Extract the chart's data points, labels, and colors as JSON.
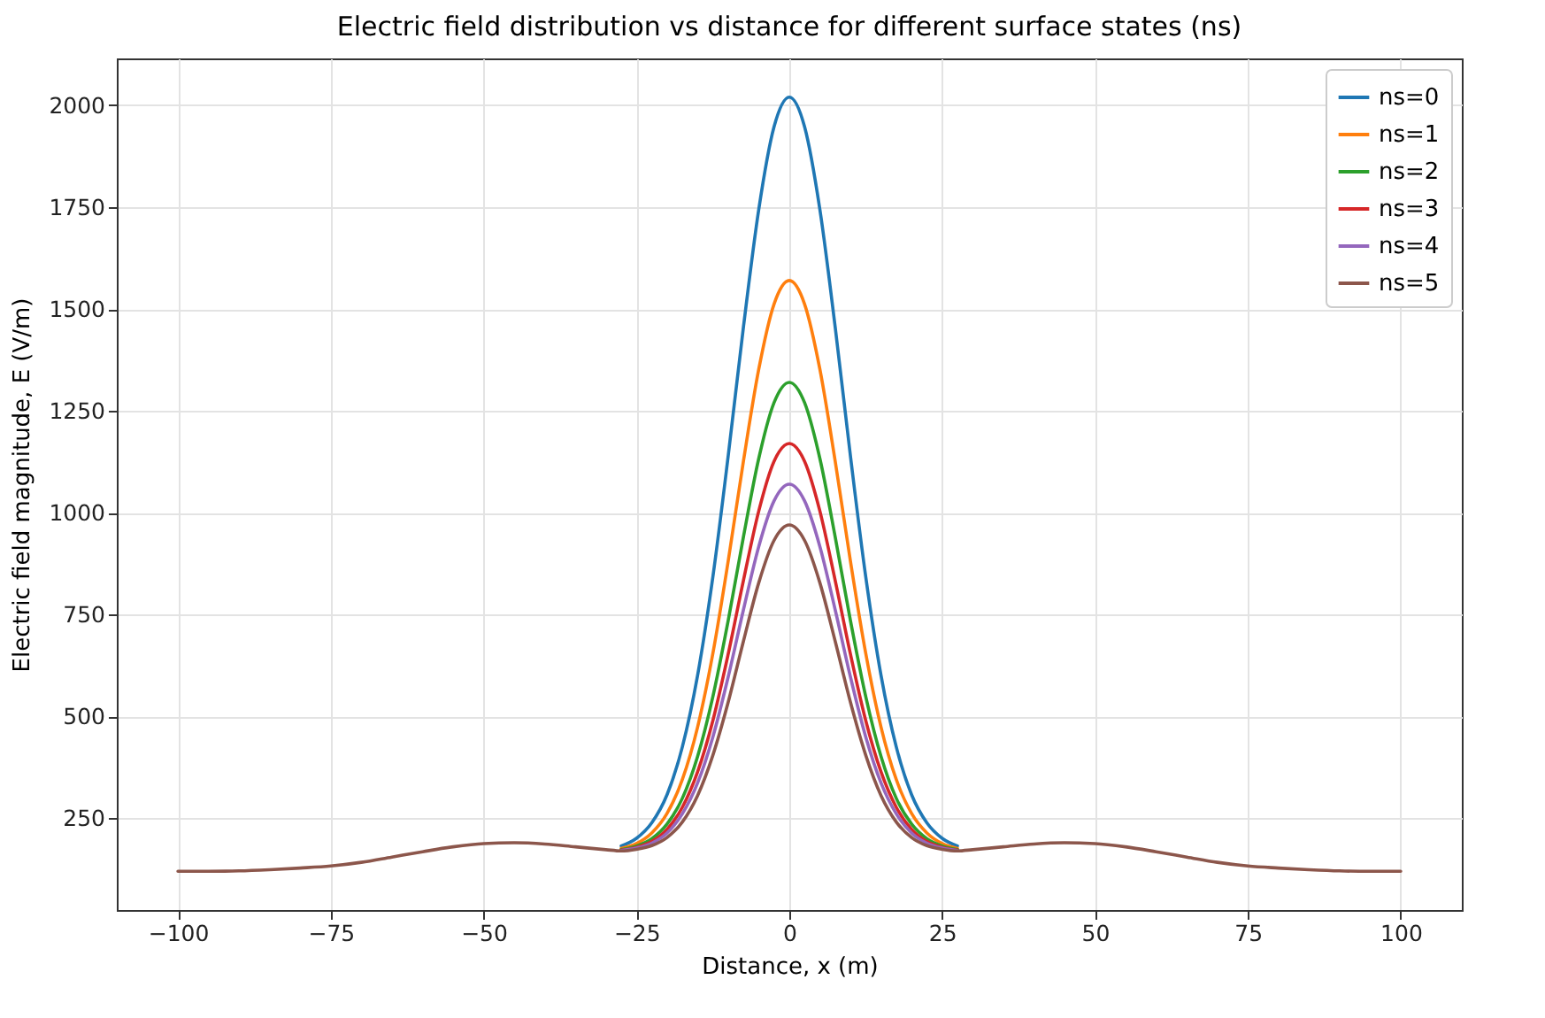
{
  "chart_data": {
    "type": "line",
    "title": "Electric field distribution vs distance for different surface states (ns)",
    "xlabel": "Distance, x (m)",
    "ylabel": "Electric field magnitude, E (V/m)",
    "x": [
      -100,
      -95,
      -90,
      -85,
      -80,
      -75,
      -70,
      -65,
      -60,
      -55,
      -50,
      -45,
      -40,
      -35,
      -30,
      -27.5,
      -25,
      -22.5,
      -20,
      -17.5,
      -15,
      -12.5,
      -10,
      -7.5,
      -5,
      -2.5,
      0,
      2.5,
      5,
      7.5,
      10,
      12.5,
      15,
      17.5,
      20,
      22.5,
      25,
      27.5,
      30,
      35,
      40,
      45,
      50,
      55,
      60,
      65,
      70,
      75,
      80,
      85,
      90,
      95,
      100
    ],
    "series": [
      {
        "name": "ns=0",
        "color": "#1f77b4",
        "values": [
          null,
          null,
          null,
          null,
          null,
          null,
          null,
          null,
          null,
          null,
          null,
          null,
          null,
          null,
          null,
          182,
          201,
          239,
          308,
          425,
          601,
          843,
          1139,
          1456,
          1744,
          1947,
          2020,
          1947,
          1744,
          1456,
          1139,
          843,
          601,
          425,
          308,
          239,
          201,
          182,
          null,
          null,
          null,
          null,
          null,
          null,
          null,
          null,
          null,
          null,
          null,
          null,
          null,
          null,
          null
        ]
      },
      {
        "name": "ns=1",
        "color": "#ff7f0e",
        "values": [
          null,
          null,
          null,
          null,
          null,
          null,
          null,
          null,
          null,
          null,
          null,
          null,
          null,
          null,
          null,
          176,
          188,
          214,
          262,
          345,
          474,
          655,
          881,
          1127,
          1352,
          1512,
          1570,
          1512,
          1352,
          1127,
          881,
          655,
          474,
          345,
          262,
          214,
          188,
          176,
          null,
          null,
          null,
          null,
          null,
          null,
          null,
          null,
          null,
          null,
          null,
          null,
          null,
          null,
          null
        ]
      },
      {
        "name": "ns=2",
        "color": "#2ca02c",
        "values": [
          null,
          null,
          null,
          null,
          null,
          null,
          null,
          null,
          null,
          null,
          null,
          null,
          null,
          null,
          null,
          173,
          182,
          200,
          236,
          299,
          402,
          549,
          735,
          941,
          1133,
          1270,
          1320,
          1270,
          1133,
          941,
          735,
          549,
          402,
          299,
          236,
          200,
          182,
          173,
          null,
          null,
          null,
          null,
          null,
          null,
          null,
          null,
          null,
          null,
          null,
          null,
          null,
          null,
          null
        ]
      },
      {
        "name": "ns=3",
        "color": "#d62728",
        "values": [
          null,
          null,
          null,
          null,
          null,
          null,
          null,
          null,
          null,
          null,
          null,
          null,
          null,
          null,
          null,
          172,
          179,
          193,
          223,
          277,
          364,
          490,
          653,
          834,
          1004,
          1126,
          1170,
          1126,
          1004,
          834,
          653,
          490,
          364,
          277,
          223,
          193,
          179,
          172,
          null,
          null,
          null,
          null,
          null,
          null,
          null,
          null,
          null,
          null,
          null,
          null,
          null,
          null,
          null
        ]
      },
      {
        "name": "ns=4",
        "color": "#9467bd",
        "values": [
          null,
          null,
          null,
          null,
          null,
          null,
          null,
          null,
          null,
          null,
          null,
          null,
          null,
          null,
          null,
          171,
          177,
          189,
          214,
          261,
          337,
          450,
          597,
          762,
          917,
          1029,
          1070,
          1029,
          917,
          762,
          597,
          450,
          337,
          261,
          214,
          189,
          177,
          171,
          null,
          null,
          null,
          null,
          null,
          null,
          null,
          null,
          null,
          null,
          null,
          null,
          null,
          null,
          null
        ]
      },
      {
        "name": "ns=5",
        "color": "#8c564b",
        "values": [
          120,
          120,
          121,
          124,
          128,
          133,
          142,
          155,
          168,
          180,
          188,
          190,
          187,
          180,
          173,
          170,
          174,
          183,
          203,
          241,
          306,
          405,
          535,
          685,
          828,
          932,
          970,
          932,
          828,
          685,
          535,
          405,
          306,
          241,
          203,
          183,
          174,
          170,
          173,
          180,
          187,
          190,
          188,
          180,
          168,
          155,
          142,
          133,
          128,
          124,
          121,
          120,
          120
        ]
      }
    ],
    "xlim": [
      -110,
      110
    ],
    "ylim": [
      25,
      2115
    ],
    "xticks": [
      -100,
      -75,
      -50,
      -25,
      0,
      25,
      50,
      75,
      100
    ],
    "yticks": [
      250,
      500,
      750,
      1000,
      1250,
      1500,
      1750,
      2000
    ],
    "grid": true,
    "legend": "top right"
  }
}
